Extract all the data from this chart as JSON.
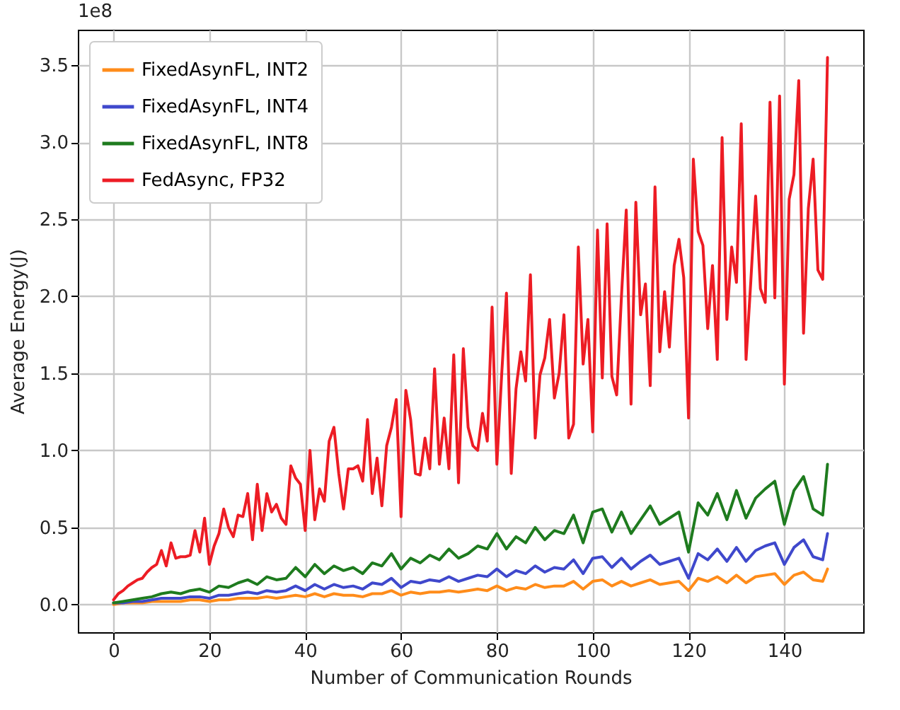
{
  "chart_data": {
    "type": "line",
    "xlabel": "Number of Communication Rounds",
    "ylabel": "Average Energy(J)",
    "annotations": [
      "1e8"
    ],
    "xlim": [
      -7.45,
      156.45
    ],
    "xticks": [
      0,
      20,
      40,
      60,
      80,
      100,
      120,
      140
    ],
    "ylim": [
      -0.18,
      3.73
    ],
    "yticks": [
      {
        "value": 0,
        "label": "0.0"
      },
      0.5,
      {
        "value": 1,
        "label": "1.0"
      },
      1.5,
      {
        "value": 2,
        "label": "2.0"
      },
      2.5,
      {
        "value": 3,
        "label": "3.0"
      },
      3.5
    ],
    "grid": true,
    "legend": "top left",
    "marker": "none",
    "line_style": "solid",
    "series": [
      {
        "name": "FixedAsynFL, INT2",
        "color": "#ff8c1a",
        "x": [
          0,
          2,
          4,
          6,
          8,
          10,
          12,
          14,
          16,
          18,
          20,
          22,
          24,
          26,
          28,
          30,
          32,
          34,
          36,
          38,
          40,
          42,
          44,
          46,
          48,
          50,
          52,
          54,
          56,
          58,
          60,
          62,
          64,
          66,
          68,
          70,
          72,
          74,
          76,
          78,
          80,
          82,
          84,
          86,
          88,
          90,
          92,
          94,
          96,
          98,
          100,
          102,
          104,
          106,
          108,
          110,
          112,
          114,
          116,
          118,
          120,
          122,
          124,
          126,
          128,
          130,
          132,
          134,
          136,
          138,
          140,
          142,
          144,
          146,
          148,
          149
        ],
        "values": [
          0.0,
          0.01,
          0.01,
          0.01,
          0.02,
          0.02,
          0.02,
          0.02,
          0.03,
          0.03,
          0.02,
          0.03,
          0.03,
          0.04,
          0.04,
          0.04,
          0.05,
          0.04,
          0.05,
          0.06,
          0.05,
          0.07,
          0.05,
          0.07,
          0.06,
          0.06,
          0.05,
          0.07,
          0.07,
          0.09,
          0.06,
          0.08,
          0.07,
          0.08,
          0.08,
          0.09,
          0.08,
          0.09,
          0.1,
          0.09,
          0.12,
          0.09,
          0.11,
          0.1,
          0.13,
          0.11,
          0.12,
          0.12,
          0.15,
          0.1,
          0.15,
          0.16,
          0.12,
          0.15,
          0.12,
          0.14,
          0.16,
          0.13,
          0.14,
          0.15,
          0.09,
          0.17,
          0.15,
          0.18,
          0.14,
          0.19,
          0.14,
          0.18,
          0.19,
          0.2,
          0.13,
          0.19,
          0.21,
          0.16,
          0.15,
          0.23
        ]
      },
      {
        "name": "FixedAsynFL, INT4",
        "color": "#3f48cc",
        "x": [
          0,
          2,
          4,
          6,
          8,
          10,
          12,
          14,
          16,
          18,
          20,
          22,
          24,
          26,
          28,
          30,
          32,
          34,
          36,
          38,
          40,
          42,
          44,
          46,
          48,
          50,
          52,
          54,
          56,
          58,
          60,
          62,
          64,
          66,
          68,
          70,
          72,
          74,
          76,
          78,
          80,
          82,
          84,
          86,
          88,
          90,
          92,
          94,
          96,
          98,
          100,
          102,
          104,
          106,
          108,
          110,
          112,
          114,
          116,
          118,
          120,
          122,
          124,
          126,
          128,
          130,
          132,
          134,
          136,
          138,
          140,
          142,
          144,
          146,
          148,
          149
        ],
        "values": [
          0.01,
          0.01,
          0.02,
          0.02,
          0.03,
          0.04,
          0.04,
          0.04,
          0.05,
          0.05,
          0.04,
          0.06,
          0.06,
          0.07,
          0.08,
          0.07,
          0.09,
          0.08,
          0.09,
          0.12,
          0.09,
          0.13,
          0.1,
          0.13,
          0.11,
          0.12,
          0.1,
          0.14,
          0.13,
          0.17,
          0.11,
          0.15,
          0.14,
          0.16,
          0.15,
          0.18,
          0.15,
          0.17,
          0.19,
          0.18,
          0.23,
          0.18,
          0.22,
          0.2,
          0.25,
          0.21,
          0.24,
          0.23,
          0.29,
          0.2,
          0.3,
          0.31,
          0.24,
          0.3,
          0.23,
          0.28,
          0.32,
          0.26,
          0.28,
          0.3,
          0.17,
          0.33,
          0.29,
          0.36,
          0.28,
          0.37,
          0.28,
          0.35,
          0.38,
          0.4,
          0.26,
          0.37,
          0.42,
          0.31,
          0.29,
          0.46
        ]
      },
      {
        "name": "FixedAsynFL, INT8",
        "color": "#1e7b1e",
        "x": [
          0,
          2,
          4,
          6,
          8,
          10,
          12,
          14,
          16,
          18,
          20,
          22,
          24,
          26,
          28,
          30,
          32,
          34,
          36,
          38,
          40,
          42,
          44,
          46,
          48,
          50,
          52,
          54,
          56,
          58,
          60,
          62,
          64,
          66,
          68,
          70,
          72,
          74,
          76,
          78,
          80,
          82,
          84,
          86,
          88,
          90,
          92,
          94,
          96,
          98,
          100,
          102,
          104,
          106,
          108,
          110,
          112,
          114,
          116,
          118,
          120,
          122,
          124,
          126,
          128,
          130,
          132,
          134,
          136,
          138,
          140,
          142,
          144,
          146,
          148,
          149
        ],
        "values": [
          0.01,
          0.02,
          0.03,
          0.04,
          0.05,
          0.07,
          0.08,
          0.07,
          0.09,
          0.1,
          0.08,
          0.12,
          0.11,
          0.14,
          0.16,
          0.13,
          0.18,
          0.16,
          0.17,
          0.24,
          0.18,
          0.26,
          0.2,
          0.25,
          0.22,
          0.24,
          0.2,
          0.27,
          0.25,
          0.33,
          0.23,
          0.3,
          0.27,
          0.32,
          0.29,
          0.36,
          0.3,
          0.33,
          0.38,
          0.36,
          0.46,
          0.36,
          0.44,
          0.4,
          0.5,
          0.42,
          0.48,
          0.46,
          0.58,
          0.4,
          0.6,
          0.62,
          0.47,
          0.6,
          0.46,
          0.55,
          0.64,
          0.52,
          0.56,
          0.6,
          0.34,
          0.66,
          0.58,
          0.72,
          0.55,
          0.74,
          0.56,
          0.69,
          0.75,
          0.8,
          0.52,
          0.74,
          0.83,
          0.62,
          0.58,
          0.91
        ]
      },
      {
        "name": "FedAsync, FP32",
        "color": "#ed1c24",
        "x": [
          0,
          1,
          2,
          3,
          4,
          5,
          6,
          7,
          8,
          9,
          10,
          11,
          12,
          13,
          14,
          15,
          16,
          17,
          18,
          19,
          20,
          21,
          22,
          23,
          24,
          25,
          26,
          27,
          28,
          29,
          30,
          31,
          32,
          33,
          34,
          35,
          36,
          37,
          38,
          39,
          40,
          41,
          42,
          43,
          44,
          45,
          46,
          47,
          48,
          49,
          50,
          51,
          52,
          53,
          54,
          55,
          56,
          57,
          58,
          59,
          60,
          61,
          62,
          63,
          64,
          65,
          66,
          67,
          68,
          69,
          70,
          71,
          72,
          73,
          74,
          75,
          76,
          77,
          78,
          79,
          80,
          81,
          82,
          83,
          84,
          85,
          86,
          87,
          88,
          89,
          90,
          91,
          92,
          93,
          94,
          95,
          96,
          97,
          98,
          99,
          100,
          101,
          102,
          103,
          104,
          105,
          106,
          107,
          108,
          109,
          110,
          111,
          112,
          113,
          114,
          115,
          116,
          117,
          118,
          119,
          120,
          121,
          122,
          123,
          124,
          125,
          126,
          127,
          128,
          129,
          130,
          131,
          132,
          133,
          134,
          135,
          136,
          137,
          138,
          139,
          140,
          141,
          142,
          143,
          144,
          145,
          146,
          147,
          148,
          149
        ],
        "values": [
          0.03,
          0.07,
          0.09,
          0.12,
          0.14,
          0.16,
          0.17,
          0.21,
          0.24,
          0.26,
          0.35,
          0.25,
          0.4,
          0.3,
          0.31,
          0.31,
          0.32,
          0.48,
          0.34,
          0.56,
          0.26,
          0.38,
          0.46,
          0.62,
          0.5,
          0.44,
          0.58,
          0.57,
          0.72,
          0.42,
          0.78,
          0.48,
          0.72,
          0.6,
          0.65,
          0.56,
          0.52,
          0.9,
          0.82,
          0.78,
          0.48,
          1.0,
          0.55,
          0.75,
          0.67,
          1.06,
          1.15,
          0.85,
          0.62,
          0.88,
          0.88,
          0.9,
          0.8,
          1.2,
          0.72,
          0.95,
          0.64,
          1.03,
          1.15,
          1.33,
          0.57,
          1.39,
          1.2,
          0.85,
          0.84,
          1.08,
          0.88,
          1.53,
          0.91,
          1.21,
          0.88,
          1.62,
          0.79,
          1.66,
          1.15,
          1.03,
          1.0,
          1.24,
          1.06,
          1.93,
          0.91,
          1.49,
          2.02,
          0.85,
          1.4,
          1.64,
          1.45,
          2.14,
          1.08,
          1.49,
          1.6,
          1.85,
          1.34,
          1.5,
          1.88,
          1.08,
          1.17,
          2.32,
          1.56,
          1.85,
          1.12,
          2.43,
          1.47,
          2.47,
          1.48,
          1.36,
          2.0,
          2.56,
          1.3,
          2.61,
          1.88,
          2.08,
          1.42,
          2.71,
          1.64,
          2.03,
          1.67,
          2.2,
          2.37,
          2.12,
          1.21,
          2.89,
          2.42,
          2.33,
          1.79,
          2.2,
          1.59,
          3.03,
          1.85,
          2.32,
          2.09,
          3.12,
          1.59,
          2.1,
          2.65,
          2.05,
          1.96,
          3.26,
          1.99,
          3.3,
          1.43,
          2.63,
          2.79,
          3.4,
          1.76,
          2.57,
          2.89,
          2.17,
          2.11,
          3.55
        ]
      }
    ]
  }
}
